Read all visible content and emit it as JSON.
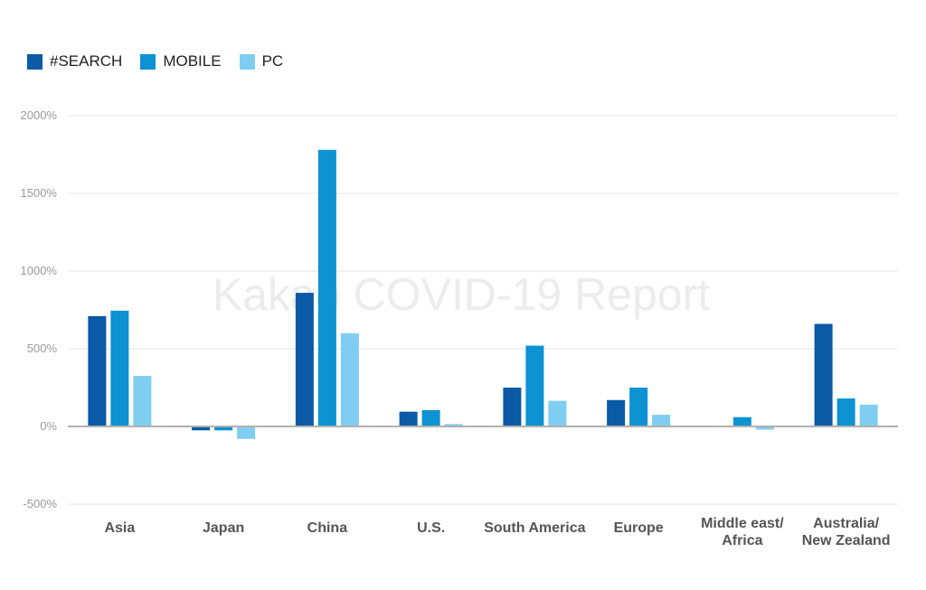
{
  "chart_data": {
    "type": "bar",
    "categories": [
      "Asia",
      "Japan",
      "China",
      "U.S.",
      "South America",
      "Europe",
      "Middle east/\nAfrica",
      "Australia/\nNew Zealand"
    ],
    "series": [
      {
        "name": "#SEARCH",
        "color": "#0a5aa5",
        "values": [
          710,
          -25,
          860,
          95,
          250,
          170,
          0,
          660
        ]
      },
      {
        "name": "MOBILE",
        "color": "#0d92d2",
        "values": [
          745,
          -25,
          1780,
          105,
          520,
          250,
          60,
          180
        ]
      },
      {
        "name": "PC",
        "color": "#7fcdf1",
        "values": [
          325,
          -80,
          600,
          15,
          165,
          75,
          -20,
          140
        ]
      }
    ],
    "yticks": [
      "2000%",
      "1500%",
      "1000%",
      "500%",
      "0%",
      "-500%"
    ],
    "ytick_values": [
      2000,
      1500,
      1000,
      500,
      0,
      -500
    ],
    "ylim": [
      -500,
      2000
    ],
    "grid": true,
    "legend_position": "top-left",
    "watermark": "Kakao COVID-19 Report"
  }
}
